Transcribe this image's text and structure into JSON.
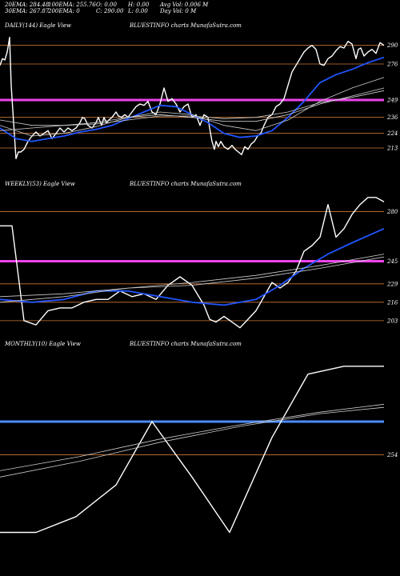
{
  "header": {
    "row1": [
      "20EMA: 284.48",
      "100EMA: 255.76",
      "O: 0.00",
      "H: 0.00",
      "Avg Vol: 0.006  M"
    ],
    "row2": [
      "30EMA: 267.87",
      "200EMA: 0",
      "C: 290.00",
      "L: 0.00",
      "Day Vol: 0  M"
    ]
  },
  "colors": {
    "price": "#ffffff",
    "ema_fast": "#2255ff",
    "ema_slow": "#cccccc",
    "level": "#cc7a3a",
    "magenta": "#ee44ee",
    "blue_level": "#4a8cff",
    "tick_text": "#ffffff"
  },
  "panels": [
    {
      "id": "daily",
      "title_left": "DAILY(144) Eagle  View",
      "title_mid": "BLUESTINFO charts MunafaSutra.com"
    },
    {
      "id": "weekly",
      "title_left": "WEEKLY(53) Eagle  View",
      "title_mid": "BLUESTINFO charts MunafaSutra.com"
    },
    {
      "id": "monthly",
      "title_left": "MONTHLY(10) Eagle  View",
      "title_mid": "BLUESTINFO charts MunafaSutra.com"
    }
  ],
  "chart_data": [
    {
      "type": "line",
      "panel": "daily",
      "yticks": [
        290,
        276,
        249,
        236,
        224,
        213
      ],
      "ylim": [
        195,
        300
      ],
      "hlines": [
        {
          "value": 290,
          "style": "level"
        },
        {
          "value": 276,
          "style": "level"
        },
        {
          "value": 249,
          "style": "magenta"
        },
        {
          "value": 236,
          "style": "level"
        },
        {
          "value": 224,
          "style": "level"
        },
        {
          "value": 213,
          "style": "level"
        }
      ],
      "series": [
        {
          "role": "price",
          "x": [
            0,
            3,
            6,
            9,
            12,
            14,
            17,
            20,
            23,
            26,
            30,
            35,
            40,
            45,
            50,
            55,
            60,
            65,
            70,
            75,
            80,
            85,
            90,
            95,
            100,
            103,
            106,
            110,
            115,
            120,
            123,
            127,
            130,
            133,
            136,
            140,
            145,
            148,
            152,
            156,
            160,
            165,
            170,
            175,
            180,
            185,
            190,
            195,
            200,
            205,
            210,
            215,
            220,
            225,
            230,
            235,
            240,
            245,
            250,
            255,
            260,
            262,
            265,
            268,
            270,
            273,
            276,
            280,
            285,
            290,
            294,
            298,
            302,
            306,
            310,
            314,
            318,
            322,
            326,
            330,
            335,
            340,
            345,
            350,
            355,
            360,
            365,
            370,
            375,
            380,
            385,
            390,
            395,
            400,
            405,
            410,
            415,
            420,
            425,
            430,
            435,
            440,
            445,
            448,
            451,
            455,
            460,
            465,
            470,
            475,
            480
          ],
          "y": [
            275,
            280,
            279,
            285,
            296,
            260,
            232,
            205,
            210,
            210,
            212,
            218,
            222,
            225,
            222,
            224,
            226,
            220,
            224,
            228,
            225,
            228,
            226,
            228,
            232,
            236,
            235,
            230,
            228,
            232,
            236,
            230,
            236,
            232,
            234,
            236,
            240,
            237,
            236,
            238,
            236,
            240,
            244,
            246,
            245,
            248,
            240,
            238,
            246,
            258,
            248,
            250,
            246,
            240,
            244,
            246,
            236,
            238,
            230,
            238,
            236,
            228,
            218,
            212,
            218,
            214,
            218,
            214,
            212,
            215,
            212,
            210,
            208,
            214,
            212,
            216,
            218,
            222,
            224,
            230,
            236,
            238,
            244,
            246,
            250,
            260,
            270,
            275,
            280,
            285,
            288,
            290,
            287,
            276,
            275,
            280,
            282,
            286,
            289,
            288,
            293,
            291,
            280,
            287,
            288,
            282,
            285,
            287,
            284,
            292,
            290
          ]
        },
        {
          "role": "ema_fast",
          "x": [
            0,
            20,
            40,
            60,
            80,
            100,
            120,
            140,
            160,
            180,
            200,
            220,
            240,
            260,
            280,
            300,
            320,
            340,
            360,
            380,
            400,
            420,
            440,
            460,
            480
          ],
          "y": [
            228,
            220,
            218,
            220,
            222,
            225,
            227,
            230,
            235,
            240,
            245,
            244,
            238,
            232,
            224,
            221,
            222,
            226,
            236,
            248,
            262,
            268,
            272,
            277,
            281
          ]
        },
        {
          "role": "ema_slow",
          "x": [
            0,
            40,
            80,
            120,
            160,
            200,
            240,
            280,
            320,
            360,
            400,
            440,
            480
          ],
          "y": [
            230,
            222,
            224,
            229,
            236,
            240,
            238,
            230,
            226,
            234,
            248,
            258,
            266
          ]
        },
        {
          "role": "ema_slow",
          "x": [
            0,
            40,
            80,
            120,
            160,
            200,
            240,
            280,
            320,
            360,
            400,
            440,
            480
          ],
          "y": [
            226,
            228,
            230,
            232,
            236,
            238,
            236,
            233,
            233,
            238,
            246,
            252,
            258
          ]
        },
        {
          "role": "ema_slow",
          "x": [
            0,
            40,
            80,
            120,
            160,
            200,
            240,
            280,
            320,
            360,
            400,
            440,
            480
          ],
          "y": [
            234,
            230,
            230,
            231,
            234,
            237,
            237,
            235,
            236,
            240,
            247,
            251,
            256
          ]
        }
      ]
    },
    {
      "type": "line",
      "panel": "weekly",
      "yticks": [
        280,
        245,
        229,
        216,
        203
      ],
      "ylim": [
        195,
        295
      ],
      "hlines": [
        {
          "value": 280,
          "style": "level"
        },
        {
          "value": 245,
          "style": "magenta"
        },
        {
          "value": 229,
          "style": "level"
        },
        {
          "value": 216,
          "style": "level"
        },
        {
          "value": 203,
          "style": "level"
        }
      ],
      "series": [
        {
          "role": "price",
          "x": [
            0,
            15,
            30,
            45,
            60,
            75,
            90,
            105,
            120,
            135,
            150,
            165,
            180,
            195,
            210,
            225,
            240,
            255,
            262,
            270,
            280,
            290,
            300,
            310,
            320,
            330,
            340,
            350,
            360,
            370,
            380,
            390,
            400,
            410,
            420,
            430,
            440,
            450,
            460,
            470,
            480
          ],
          "y": [
            270,
            270,
            203,
            200,
            210,
            212,
            212,
            216,
            218,
            218,
            224,
            220,
            222,
            218,
            228,
            234,
            228,
            214,
            204,
            202,
            206,
            202,
            198,
            204,
            210,
            220,
            230,
            226,
            230,
            238,
            252,
            256,
            262,
            285,
            262,
            268,
            278,
            285,
            290,
            290,
            287
          ]
        },
        {
          "role": "ema_fast",
          "x": [
            0,
            40,
            80,
            120,
            160,
            200,
            240,
            280,
            320,
            350,
            380,
            410,
            440,
            480
          ],
          "y": [
            218,
            216,
            218,
            224,
            224,
            220,
            216,
            214,
            218,
            228,
            240,
            250,
            258,
            268
          ]
        },
        {
          "role": "ema_slow",
          "x": [
            0,
            80,
            160,
            240,
            320,
            400,
            480
          ],
          "y": [
            216,
            220,
            226,
            228,
            233,
            240,
            248
          ]
        },
        {
          "role": "ema_slow",
          "x": [
            0,
            80,
            160,
            240,
            320,
            400,
            480
          ],
          "y": [
            220,
            222,
            226,
            230,
            235,
            242,
            250
          ]
        }
      ]
    },
    {
      "type": "line",
      "panel": "monthly",
      "yticks": [
        254
      ],
      "ylim": [
        180,
        320
      ],
      "hlines": [
        {
          "value": 275,
          "style": "blue_level"
        },
        {
          "value": 254,
          "style": "level"
        }
      ],
      "series": [
        {
          "role": "price",
          "x": [
            0,
            45,
            95,
            145,
            190,
            240,
            287,
            340,
            385,
            430,
            480
          ],
          "y": [
            205,
            205,
            215,
            235,
            275,
            240,
            205,
            265,
            305,
            310,
            310
          ]
        },
        {
          "role": "ema_slow",
          "x": [
            0,
            100,
            200,
            300,
            400,
            480
          ],
          "y": [
            240,
            250,
            262,
            272,
            280,
            284
          ]
        },
        {
          "role": "ema_slow",
          "x": [
            0,
            100,
            200,
            300,
            400,
            480
          ],
          "y": [
            244,
            253,
            264,
            273,
            281,
            286
          ]
        }
      ]
    }
  ]
}
